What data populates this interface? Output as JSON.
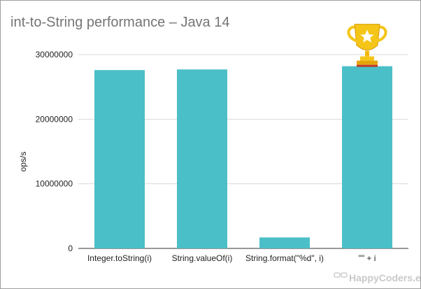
{
  "chart_data": {
    "type": "bar",
    "title": "int-to-String performance – Java 14",
    "xlabel": "",
    "ylabel": "ops/s",
    "categories": [
      "Integer.toString(i)",
      "String.valueOf(i)",
      "String.format(\"%d\", i)",
      "\"\" + i"
    ],
    "values": [
      27600000,
      27700000,
      1700000,
      28200000
    ],
    "ylim": [
      0,
      30000000
    ],
    "yticks": [
      "0",
      "10000000",
      "20000000",
      "30000000"
    ],
    "grid": true,
    "bar_color": "#4bbfc8"
  },
  "decorations": {
    "winner_icon": "trophy-icon",
    "trophy_color": "#f5c518",
    "brand": "HappyCoders.eu"
  }
}
